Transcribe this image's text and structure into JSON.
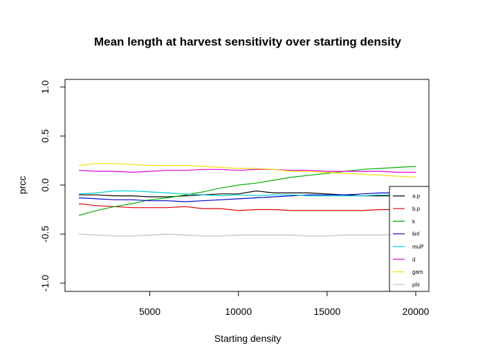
{
  "chart_data": {
    "type": "line",
    "title": "Mean length at harvest sensitivity over starting density",
    "xlabel": "Starting density",
    "ylabel": "prcc",
    "xlim": [
      1000,
      20000
    ],
    "ylim": [
      -1.0,
      1.0
    ],
    "x_ticks": [
      5000,
      10000,
      15000,
      20000
    ],
    "x_tick_labels": [
      "5000",
      "10000",
      "15000",
      "20000"
    ],
    "y_ticks": [
      -1.0,
      -0.5,
      0.0,
      0.5,
      1.0
    ],
    "y_tick_labels": [
      "-1.0",
      "-0.5",
      "0.0",
      "0.5",
      "1.0"
    ],
    "grid": false,
    "legend_position": "bottom-right",
    "x": [
      1000,
      2000,
      3000,
      4000,
      5000,
      6000,
      7000,
      8000,
      9000,
      10000,
      11000,
      12000,
      13000,
      14000,
      15000,
      16000,
      17000,
      18000,
      19000,
      20000
    ],
    "series": [
      {
        "name": "a.p",
        "color": "#000000",
        "values": [
          -0.1,
          -0.1,
          -0.11,
          -0.11,
          -0.12,
          -0.12,
          -0.11,
          -0.1,
          -0.09,
          -0.09,
          -0.06,
          -0.08,
          -0.08,
          -0.08,
          -0.09,
          -0.1,
          -0.11,
          -0.11,
          -0.11,
          -0.11
        ]
      },
      {
        "name": "b.p",
        "color": "#DF0000",
        "values": [
          -0.19,
          -0.21,
          -0.22,
          -0.23,
          -0.23,
          -0.23,
          -0.22,
          -0.24,
          -0.24,
          -0.26,
          -0.25,
          -0.25,
          -0.26,
          -0.26,
          -0.26,
          -0.26,
          -0.26,
          -0.25,
          -0.25,
          -0.25
        ]
      },
      {
        "name": "k",
        "color": "#00B000",
        "values": [
          -0.31,
          -0.26,
          -0.22,
          -0.19,
          -0.15,
          -0.13,
          -0.1,
          -0.07,
          -0.03,
          0.0,
          0.02,
          0.05,
          0.08,
          0.1,
          0.12,
          0.14,
          0.16,
          0.17,
          0.18,
          0.19
        ]
      },
      {
        "name": "linf",
        "color": "#0000CC",
        "values": [
          -0.13,
          -0.14,
          -0.15,
          -0.15,
          -0.16,
          -0.16,
          -0.17,
          -0.16,
          -0.15,
          -0.14,
          -0.13,
          -0.12,
          -0.11,
          -0.1,
          -0.1,
          -0.1,
          -0.09,
          -0.08,
          -0.08,
          -0.08
        ]
      },
      {
        "name": "muP",
        "color": "#00D0D0",
        "values": [
          -0.09,
          -0.08,
          -0.06,
          -0.06,
          -0.07,
          -0.08,
          -0.09,
          -0.1,
          -0.11,
          -0.1,
          -0.11,
          -0.1,
          -0.1,
          -0.11,
          -0.11,
          -0.11,
          -0.11,
          -0.1,
          -0.1,
          -0.1
        ]
      },
      {
        "name": "d",
        "color": "#DD00DD",
        "values": [
          0.15,
          0.14,
          0.14,
          0.13,
          0.14,
          0.15,
          0.15,
          0.16,
          0.16,
          0.15,
          0.16,
          0.16,
          0.15,
          0.15,
          0.14,
          0.14,
          0.14,
          0.14,
          0.13,
          0.13
        ]
      },
      {
        "name": "gam",
        "color": "#F5E000",
        "values": [
          0.2,
          0.22,
          0.22,
          0.21,
          0.2,
          0.2,
          0.2,
          0.19,
          0.18,
          0.17,
          0.17,
          0.16,
          0.14,
          0.14,
          0.13,
          0.12,
          0.11,
          0.1,
          0.09,
          0.08
        ]
      },
      {
        "name": "phi",
        "color": "#BEBEBE",
        "values": [
          -0.5,
          -0.51,
          -0.52,
          -0.52,
          -0.51,
          -0.5,
          -0.51,
          -0.52,
          -0.52,
          -0.51,
          -0.51,
          -0.51,
          -0.51,
          -0.52,
          -0.52,
          -0.51,
          -0.51,
          -0.51,
          -0.5,
          -0.5
        ]
      }
    ]
  }
}
